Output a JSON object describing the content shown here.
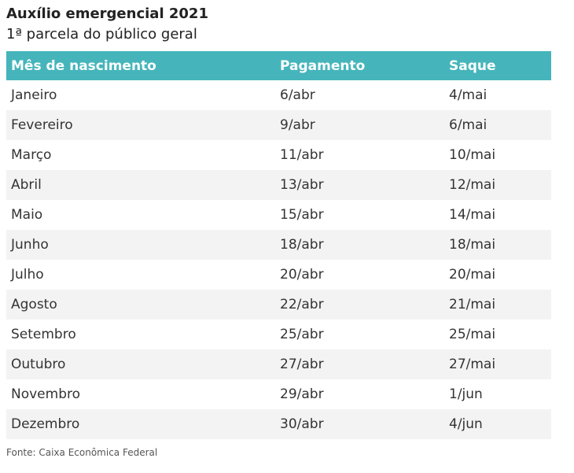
{
  "title": "Auxílio emergencial 2021",
  "subtitle": "1ª parcela do público geral",
  "table": {
    "headers": [
      "Mês de nascimento",
      "Pagamento",
      "Saque"
    ],
    "rows": [
      [
        "Janeiro",
        "6/abr",
        "4/mai"
      ],
      [
        "Fevereiro",
        "9/abr",
        "6/mai"
      ],
      [
        "Março",
        "11/abr",
        "10/mai"
      ],
      [
        "Abril",
        "13/abr",
        "12/mai"
      ],
      [
        "Maio",
        "15/abr",
        "14/mai"
      ],
      [
        "Junho",
        "18/abr",
        "18/mai"
      ],
      [
        "Julho",
        "20/abr",
        "20/mai"
      ],
      [
        "Agosto",
        "22/abr",
        "21/mai"
      ],
      [
        "Setembro",
        "25/abr",
        "25/mai"
      ],
      [
        "Outubro",
        "27/abr",
        "27/mai"
      ],
      [
        "Novembro",
        "29/abr",
        "1/jun"
      ],
      [
        "Dezembro",
        "30/abr",
        "4/jun"
      ]
    ]
  },
  "source": "Fonte: Caixa Econômica Federal",
  "colors": {
    "header_background": "#45b5bb",
    "header_text": "#ffffff",
    "alt_row_background": "#f3f3f3"
  }
}
